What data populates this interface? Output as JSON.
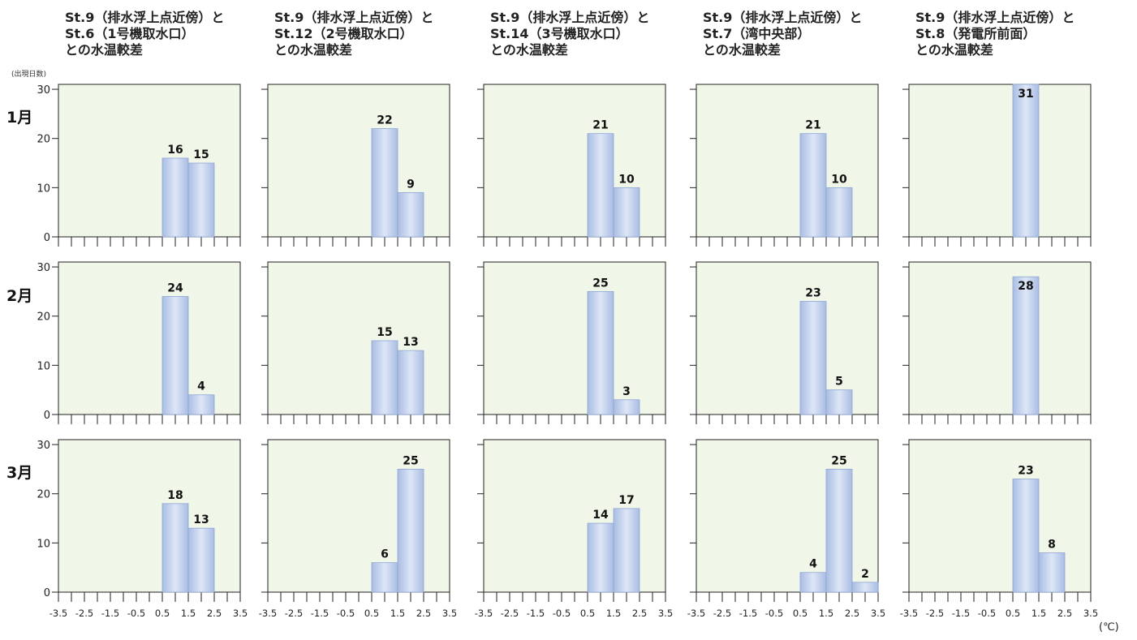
{
  "ylabel": "(出現日数)",
  "unit": "(℃)",
  "columns": [
    {
      "title_lines": [
        "St.9（排水浮上点近傍）と",
        "St.6（1号機取水口）",
        "との水温較差"
      ]
    },
    {
      "title_lines": [
        "St.9（排水浮上点近傍）と",
        "St.12（2号機取水口）",
        "との水温較差"
      ]
    },
    {
      "title_lines": [
        "St.9（排水浮上点近傍）と",
        "St.14（3号機取水口）",
        "との水温較差"
      ]
    },
    {
      "title_lines": [
        "St.9（排水浮上点近傍）と",
        "St.7（湾中央部）",
        "との水温較差"
      ]
    },
    {
      "title_lines": [
        "St.9（排水浮上点近傍）と",
        "St.8（発電所前面）",
        "との水温較差"
      ]
    }
  ],
  "rows": [
    {
      "label": "1月"
    },
    {
      "label": "2月"
    },
    {
      "label": "3月"
    }
  ],
  "colors": {
    "plot_background": "#f0f7e8",
    "bar_edge": "#a9bde2",
    "bar_center": "#dde6f7",
    "axis": "#222222"
  },
  "chart_data": {
    "type": "bar",
    "ylabel": "(出現日数)",
    "xlabel": "(℃)",
    "x_ticks": [
      "-3.5",
      "-2.5",
      "-1.5",
      "-0.5",
      "0.5",
      "1.5",
      "2.5",
      "3.5"
    ],
    "y_ticks": [
      "0",
      "10",
      "20",
      "30"
    ],
    "ylim": [
      0,
      31
    ],
    "xlim": [
      -3.5,
      3.5
    ],
    "bin_width": 1,
    "grid": false,
    "panels": [
      {
        "row": 0,
        "col": 0,
        "bins": [
          {
            "center": 1,
            "value": 16
          },
          {
            "center": 2,
            "value": 15
          }
        ]
      },
      {
        "row": 0,
        "col": 1,
        "bins": [
          {
            "center": 1,
            "value": 22
          },
          {
            "center": 2,
            "value": 9
          }
        ]
      },
      {
        "row": 0,
        "col": 2,
        "bins": [
          {
            "center": 1,
            "value": 21
          },
          {
            "center": 2,
            "value": 10
          }
        ]
      },
      {
        "row": 0,
        "col": 3,
        "bins": [
          {
            "center": 1,
            "value": 21
          },
          {
            "center": 2,
            "value": 10
          }
        ]
      },
      {
        "row": 0,
        "col": 4,
        "bins": [
          {
            "center": 1,
            "value": 31
          }
        ]
      },
      {
        "row": 1,
        "col": 0,
        "bins": [
          {
            "center": 1,
            "value": 24
          },
          {
            "center": 2,
            "value": 4
          }
        ]
      },
      {
        "row": 1,
        "col": 1,
        "bins": [
          {
            "center": 1,
            "value": 15
          },
          {
            "center": 2,
            "value": 13
          }
        ]
      },
      {
        "row": 1,
        "col": 2,
        "bins": [
          {
            "center": 1,
            "value": 25
          },
          {
            "center": 2,
            "value": 3
          }
        ]
      },
      {
        "row": 1,
        "col": 3,
        "bins": [
          {
            "center": 1,
            "value": 23
          },
          {
            "center": 2,
            "value": 5
          }
        ]
      },
      {
        "row": 1,
        "col": 4,
        "bins": [
          {
            "center": 1,
            "value": 28
          }
        ]
      },
      {
        "row": 2,
        "col": 0,
        "bins": [
          {
            "center": 1,
            "value": 18
          },
          {
            "center": 2,
            "value": 13
          }
        ]
      },
      {
        "row": 2,
        "col": 1,
        "bins": [
          {
            "center": 1,
            "value": 6
          },
          {
            "center": 2,
            "value": 25
          }
        ]
      },
      {
        "row": 2,
        "col": 2,
        "bins": [
          {
            "center": 1,
            "value": 14
          },
          {
            "center": 2,
            "value": 17
          }
        ]
      },
      {
        "row": 2,
        "col": 3,
        "bins": [
          {
            "center": 1,
            "value": 4
          },
          {
            "center": 2,
            "value": 25
          },
          {
            "center": 3,
            "value": 2
          }
        ]
      },
      {
        "row": 2,
        "col": 4,
        "bins": [
          {
            "center": 1,
            "value": 23
          },
          {
            "center": 2,
            "value": 8
          }
        ]
      }
    ]
  }
}
